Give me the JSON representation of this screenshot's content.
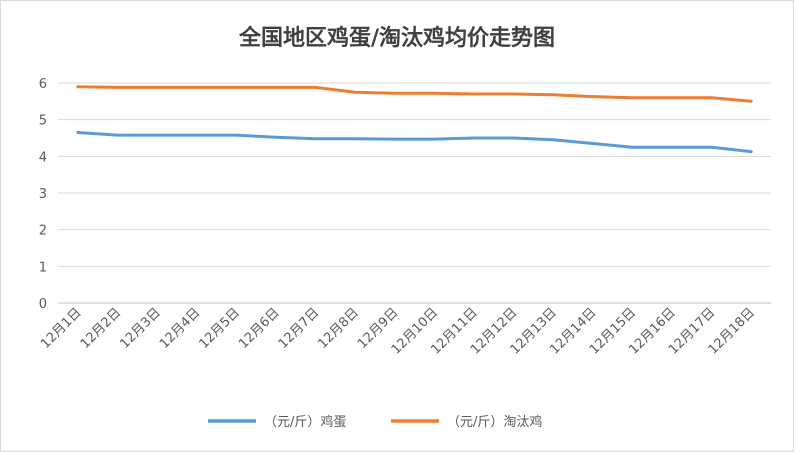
{
  "chart_data": {
    "type": "line",
    "title": "全国地区鸡蛋/淘汰鸡均价走势图",
    "xlabel": "",
    "ylabel": "",
    "categories": [
      "12月1日",
      "12月2日",
      "12月3日",
      "12月4日",
      "12月5日",
      "12月6日",
      "12月7日",
      "12月8日",
      "12月9日",
      "12月10日",
      "12月11日",
      "12月12日",
      "12月13日",
      "12月14日",
      "12月15日",
      "12月16日",
      "12月17日",
      "12月18日"
    ],
    "ylim": [
      0,
      6
    ],
    "yticks": [
      "0",
      "1",
      "2",
      "3",
      "4",
      "5",
      "6"
    ],
    "grid": true,
    "legend_position": "bottom",
    "series": [
      {
        "name": "（元/斤）鸡蛋",
        "color": "#5b9bd5",
        "values": [
          4.65,
          4.58,
          4.58,
          4.58,
          4.58,
          4.52,
          4.48,
          4.48,
          4.47,
          4.47,
          4.5,
          4.5,
          4.45,
          4.35,
          4.25,
          4.25,
          4.25,
          4.13
        ]
      },
      {
        "name": "（元/斤）淘汰鸡",
        "color": "#ed7d31",
        "values": [
          5.9,
          5.88,
          5.88,
          5.88,
          5.88,
          5.88,
          5.88,
          5.75,
          5.72,
          5.72,
          5.7,
          5.7,
          5.68,
          5.63,
          5.6,
          5.6,
          5.6,
          5.5
        ]
      }
    ]
  }
}
